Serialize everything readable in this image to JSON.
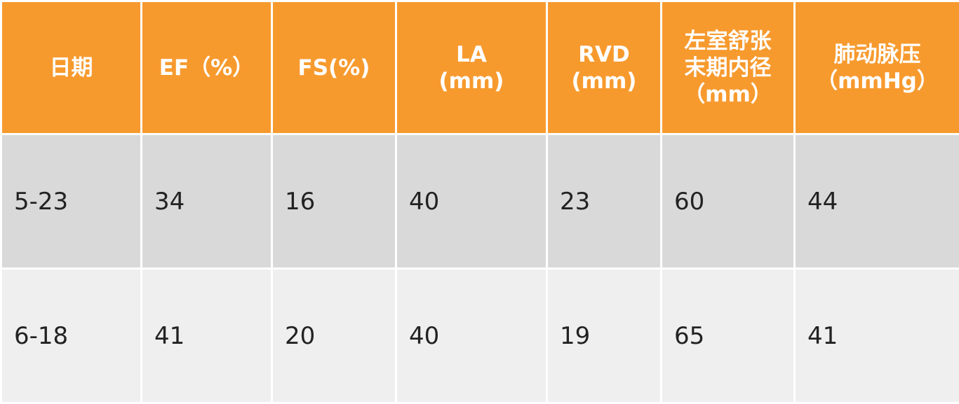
{
  "table": {
    "headers": [
      {
        "lines": [
          "日期"
        ]
      },
      {
        "lines": [
          "EF（%）"
        ]
      },
      {
        "lines": [
          "FS(%)"
        ]
      },
      {
        "lines": [
          "LA",
          "(mm)"
        ]
      },
      {
        "lines": [
          "RVD",
          "(mm)"
        ]
      },
      {
        "lines": [
          "左室舒张",
          "末期内径",
          "（mm）"
        ]
      },
      {
        "lines": [
          "肺动脉压",
          "（mmHg）"
        ]
      }
    ],
    "rows": [
      [
        "5-23",
        "34",
        "16",
        "40",
        "23",
        "60",
        "44"
      ],
      [
        "6-18",
        "41",
        "20",
        "40",
        "19",
        "65",
        "41"
      ]
    ]
  },
  "colors": {
    "header_bg": "#f79a2e",
    "header_text": "#ffffff",
    "row_odd_bg": "#d9d9d9",
    "row_even_bg": "#efefef",
    "body_text": "#222222"
  }
}
